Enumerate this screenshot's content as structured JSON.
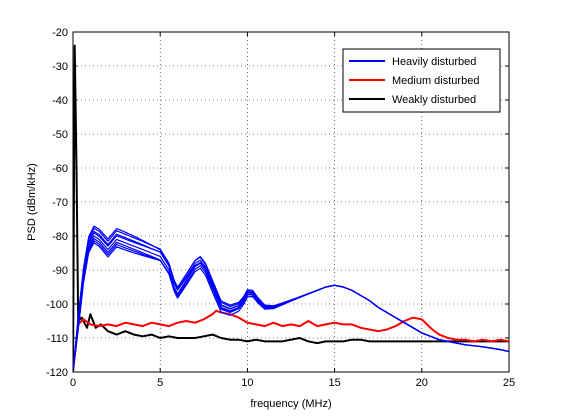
{
  "chart_data": {
    "type": "line",
    "xlabel": "frequency (MHz)",
    "ylabel": "PSD (dBm/kHz)",
    "xlim": [
      0,
      25
    ],
    "ylim": [
      -120,
      -20
    ],
    "xticks": [
      0,
      5,
      10,
      15,
      20,
      25
    ],
    "yticks": [
      -120,
      -110,
      -100,
      -90,
      -80,
      -70,
      -60,
      -50,
      -40,
      -30,
      -20
    ],
    "grid": true,
    "legend_position": "top-right",
    "series": [
      {
        "name": "Heavily disturbed",
        "color": "#0000ff",
        "note_bundle": "many overlapping traces",
        "x": [
          0,
          0.3,
          0.6,
          0.9,
          1.2,
          1.5,
          2.0,
          2.5,
          3.0,
          3.5,
          4.0,
          4.5,
          5.0,
          5.5,
          5.8,
          6.0,
          6.5,
          7.0,
          7.3,
          7.6,
          8.0,
          8.5,
          9.0,
          9.5,
          9.8,
          10.0,
          10.3,
          10.6,
          11.0,
          11.5,
          12.0,
          12.5,
          13.0,
          13.5,
          14.0,
          14.5,
          15.0,
          15.5,
          16.0,
          16.5,
          17.0,
          17.5,
          18.0,
          18.5,
          19.0,
          19.5,
          20.0,
          20.5,
          21.0,
          21.5,
          22.0,
          22.5,
          23.0,
          23.5,
          24.0,
          24.5,
          25.0
        ],
        "y": [
          -120,
          -106,
          -92,
          -83,
          -80,
          -81,
          -84,
          -81,
          -82,
          -83,
          -84,
          -85,
          -86,
          -90,
          -95,
          -97,
          -93,
          -89,
          -88,
          -90,
          -95,
          -101,
          -102,
          -101,
          -99,
          -97,
          -97,
          -99,
          -101,
          -101,
          -100,
          -99,
          -98,
          -97,
          -96,
          -95,
          -94.5,
          -95,
          -96,
          -97.5,
          -99,
          -101,
          -102.5,
          -104,
          -105.5,
          -107,
          -108.5,
          -109.5,
          -110.5,
          -111,
          -111.5,
          -112,
          -112.3,
          -112.6,
          -113,
          -113.4,
          -114
        ]
      },
      {
        "name": "Medium disturbed",
        "color": "#ff0000",
        "x": [
          0,
          0.3,
          0.6,
          1.0,
          1.5,
          2.0,
          2.5,
          3.0,
          3.5,
          4.0,
          4.5,
          5.0,
          5.5,
          6.0,
          6.5,
          7.0,
          7.5,
          8.0,
          8.2,
          8.5,
          9.0,
          9.5,
          10.0,
          10.5,
          11.0,
          11.5,
          12.0,
          12.5,
          13.0,
          13.5,
          14.0,
          14.5,
          15.0,
          15.5,
          16.0,
          16.5,
          17.0,
          17.5,
          18.0,
          18.5,
          19.0,
          19.5,
          20.0,
          20.3,
          20.6,
          21.0,
          21.5,
          22.0,
          22.5,
          23.0,
          23.5,
          24.0,
          24.5,
          25.0
        ],
        "y": [
          -120,
          -106,
          -104.5,
          -106,
          -106.5,
          -106,
          -106.5,
          -105.5,
          -106,
          -106.5,
          -105.5,
          -106,
          -106.5,
          -105.5,
          -105,
          -105.5,
          -104.5,
          -103,
          -102,
          -102.5,
          -103,
          -104,
          -105.5,
          -106,
          -106.5,
          -105.5,
          -106.5,
          -106,
          -106.5,
          -105,
          -106.5,
          -106,
          -105.5,
          -106,
          -106,
          -107,
          -107.5,
          -108,
          -107.5,
          -106.5,
          -105,
          -104,
          -104.5,
          -106,
          -107.5,
          -109,
          -110,
          -110.5,
          -110.5,
          -111,
          -110.5,
          -111,
          -110.5,
          -111
        ]
      },
      {
        "name": "Weakly disturbed",
        "color": "#000000",
        "x": [
          0,
          0.1,
          0.2,
          0.3,
          0.5,
          0.8,
          1.0,
          1.3,
          1.6,
          2.0,
          2.5,
          3.0,
          3.5,
          4.0,
          4.5,
          5.0,
          5.5,
          6.0,
          6.5,
          7.0,
          7.5,
          8.0,
          8.5,
          9.0,
          9.5,
          10.0,
          10.5,
          11.0,
          11.5,
          12.0,
          12.5,
          13.0,
          13.5,
          14.0,
          14.5,
          15.0,
          15.5,
          16.0,
          16.5,
          17.0,
          17.5,
          18.0,
          18.5,
          19.0,
          19.5,
          20.0,
          20.5,
          21.0,
          21.5,
          22.0,
          22.5,
          23.0,
          23.5,
          24.0,
          24.5,
          25.0
        ],
        "y": [
          -120,
          -24,
          -60,
          -105,
          -104,
          -107,
          -103,
          -107,
          -106,
          -108,
          -109,
          -108,
          -109,
          -109.5,
          -109,
          -110,
          -109.5,
          -110,
          -110,
          -110,
          -109.5,
          -109,
          -110,
          -110.5,
          -110.5,
          -111,
          -110.5,
          -111,
          -111,
          -111,
          -110.5,
          -110,
          -111,
          -111.5,
          -111,
          -111,
          -111,
          -110.5,
          -110.5,
          -111,
          -111,
          -111,
          -111,
          -111,
          -111,
          -111,
          -111,
          -111,
          -111,
          -111,
          -111,
          -111,
          -111,
          -111,
          -111,
          -111
        ]
      }
    ]
  }
}
